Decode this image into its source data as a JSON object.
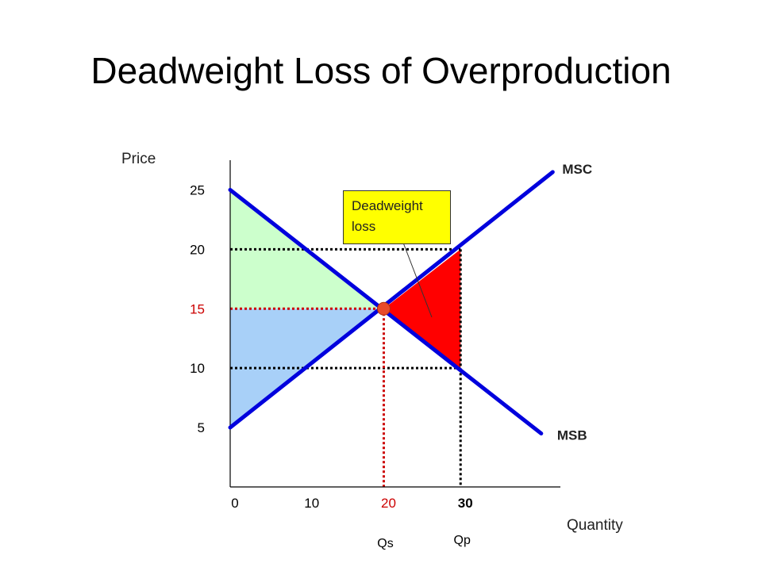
{
  "title": "Deadweight Loss of Overproduction",
  "callout": {
    "line1": "Deadweight",
    "line2": "loss"
  },
  "chart_data": {
    "type": "line",
    "title": "Deadweight Loss of Overproduction",
    "xlabel": "Quantity",
    "ylabel": "Price",
    "xlim": [
      0,
      43
    ],
    "ylim": [
      0,
      27.5
    ],
    "x_ticks": [
      {
        "value": 0,
        "label": "0",
        "color": "#000000",
        "bold": false
      },
      {
        "value": 10,
        "label": "10",
        "color": "#000000",
        "bold": false
      },
      {
        "value": 20,
        "label": "20",
        "color": "#cc0000",
        "bold": false
      },
      {
        "value": 30,
        "label": "30",
        "color": "#000000",
        "bold": true
      }
    ],
    "y_ticks": [
      {
        "value": 5,
        "label": "5",
        "color": "#000000"
      },
      {
        "value": 10,
        "label": "10",
        "color": "#000000"
      },
      {
        "value": 15,
        "label": "15",
        "color": "#cc0000"
      },
      {
        "value": 20,
        "label": "20",
        "color": "#000000"
      },
      {
        "value": 25,
        "label": "25",
        "color": "#000000"
      }
    ],
    "series": [
      {
        "name": "MSC",
        "x": [
          0,
          42
        ],
        "y": [
          5,
          26.5
        ],
        "color": "#0000dd"
      },
      {
        "name": "MSB",
        "x": [
          0,
          40.5
        ],
        "y": [
          25,
          4.5
        ],
        "color": "#0000dd"
      }
    ],
    "equilibrium": {
      "x": 20,
      "y": 15,
      "color": "#e84a2a"
    },
    "quantity_labels": [
      {
        "x": 20,
        "label": "Qs"
      },
      {
        "x": 30,
        "label": "Qp"
      }
    ],
    "areas": [
      {
        "name": "consumer-surplus",
        "points": [
          [
            0,
            25
          ],
          [
            20,
            15
          ],
          [
            0,
            15
          ]
        ],
        "color": "#ccffcc"
      },
      {
        "name": "producer-surplus",
        "points": [
          [
            0,
            15
          ],
          [
            20,
            15
          ],
          [
            0,
            5
          ]
        ],
        "color": "#a8d0f8"
      },
      {
        "name": "deadweight-loss",
        "points": [
          [
            20,
            15
          ],
          [
            30,
            20
          ],
          [
            30,
            10
          ]
        ],
        "color": "#ff0000"
      }
    ],
    "guides": [
      {
        "name": "price-20-guide",
        "from": [
          0,
          20
        ],
        "to": [
          30,
          20
        ],
        "color": "#000000"
      },
      {
        "name": "price-15-guide",
        "from": [
          0,
          15
        ],
        "to": [
          20,
          15
        ],
        "color": "#cc0000"
      },
      {
        "name": "price-10-guide",
        "from": [
          0,
          10
        ],
        "to": [
          30,
          10
        ],
        "color": "#000000"
      },
      {
        "name": "qs-guide",
        "from": [
          20,
          15
        ],
        "to": [
          20,
          0
        ],
        "color": "#cc0000"
      },
      {
        "name": "qp-guide",
        "from": [
          30,
          20
        ],
        "to": [
          30,
          0
        ],
        "color": "#000000"
      }
    ],
    "grid": false,
    "legend": "none"
  }
}
